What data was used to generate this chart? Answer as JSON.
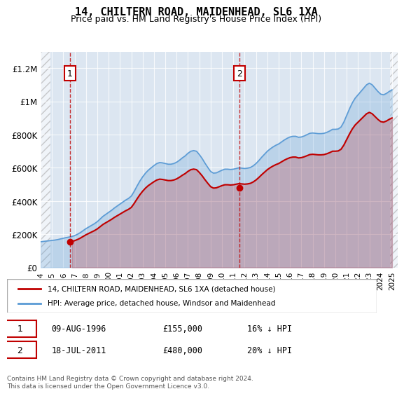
{
  "title": "14, CHILTERN ROAD, MAIDENHEAD, SL6 1XA",
  "subtitle": "Price paid vs. HM Land Registry's House Price Index (HPI)",
  "ylabel": "",
  "ylim": [
    0,
    1300000
  ],
  "yticks": [
    0,
    200000,
    400000,
    600000,
    800000,
    1000000,
    1200000
  ],
  "ytick_labels": [
    "£0",
    "£200K",
    "£400K",
    "£600K",
    "£800K",
    "£1M",
    "£1.2M"
  ],
  "xlim_start": 1994.0,
  "xlim_end": 2025.5,
  "hpi_color": "#5b9bd5",
  "price_color": "#c00000",
  "marker_color": "#c00000",
  "background_color": "#dce6f1",
  "hatch_color": "#c0cfe0",
  "annotation_box_color": "#c00000",
  "legend_label_price": "14, CHILTERN ROAD, MAIDENHEAD, SL6 1XA (detached house)",
  "legend_label_hpi": "HPI: Average price, detached house, Windsor and Maidenhead",
  "annotation1": {
    "label": "1",
    "x": 1996.6,
    "price": 155000,
    "date": "09-AUG-1996",
    "amount": "£155,000",
    "pct": "16% ↓ HPI"
  },
  "annotation2": {
    "label": "2",
    "x": 2011.54,
    "price": 480000,
    "date": "18-JUL-2011",
    "amount": "£480,000",
    "pct": "20% ↓ HPI"
  },
  "footnote": "Contains HM Land Registry data © Crown copyright and database right 2024.\nThis data is licensed under the Open Government Licence v3.0.",
  "hpi_years": [
    1994,
    1994.25,
    1994.5,
    1994.75,
    1995,
    1995.25,
    1995.5,
    1995.75,
    1996,
    1996.25,
    1996.5,
    1996.75,
    1997,
    1997.25,
    1997.5,
    1997.75,
    1998,
    1998.25,
    1998.5,
    1998.75,
    1999,
    1999.25,
    1999.5,
    1999.75,
    2000,
    2000.25,
    2000.5,
    2000.75,
    2001,
    2001.25,
    2001.5,
    2001.75,
    2002,
    2002.25,
    2002.5,
    2002.75,
    2003,
    2003.25,
    2003.5,
    2003.75,
    2004,
    2004.25,
    2004.5,
    2004.75,
    2005,
    2005.25,
    2005.5,
    2005.75,
    2006,
    2006.25,
    2006.5,
    2006.75,
    2007,
    2007.25,
    2007.5,
    2007.75,
    2008,
    2008.25,
    2008.5,
    2008.75,
    2009,
    2009.25,
    2009.5,
    2009.75,
    2010,
    2010.25,
    2010.5,
    2010.75,
    2011,
    2011.25,
    2011.5,
    2011.75,
    2012,
    2012.25,
    2012.5,
    2012.75,
    2013,
    2013.25,
    2013.5,
    2013.75,
    2014,
    2014.25,
    2014.5,
    2014.75,
    2015,
    2015.25,
    2015.5,
    2015.75,
    2016,
    2016.25,
    2016.5,
    2016.75,
    2017,
    2017.25,
    2017.5,
    2017.75,
    2018,
    2018.25,
    2018.5,
    2018.75,
    2019,
    2019.25,
    2019.5,
    2019.75,
    2020,
    2020.25,
    2020.5,
    2020.75,
    2021,
    2021.25,
    2021.5,
    2021.75,
    2022,
    2022.25,
    2022.5,
    2022.75,
    2023,
    2023.25,
    2023.5,
    2023.75,
    2024,
    2024.25,
    2024.5,
    2024.75,
    2025
  ],
  "hpi_values": [
    155000,
    157000,
    159000,
    161000,
    163000,
    165000,
    168000,
    172000,
    176000,
    180000,
    183000,
    186000,
    192000,
    200000,
    210000,
    222000,
    234000,
    244000,
    254000,
    264000,
    276000,
    292000,
    308000,
    320000,
    332000,
    344000,
    358000,
    370000,
    382000,
    394000,
    406000,
    416000,
    430000,
    458000,
    490000,
    520000,
    546000,
    568000,
    586000,
    600000,
    614000,
    626000,
    632000,
    630000,
    626000,
    622000,
    622000,
    626000,
    634000,
    646000,
    660000,
    672000,
    688000,
    700000,
    704000,
    700000,
    680000,
    656000,
    628000,
    602000,
    578000,
    568000,
    570000,
    578000,
    586000,
    592000,
    592000,
    590000,
    592000,
    596000,
    600000,
    598000,
    596000,
    598000,
    602000,
    612000,
    626000,
    644000,
    664000,
    682000,
    700000,
    714000,
    726000,
    736000,
    744000,
    756000,
    768000,
    778000,
    786000,
    790000,
    790000,
    784000,
    786000,
    792000,
    800000,
    808000,
    810000,
    808000,
    806000,
    806000,
    808000,
    814000,
    822000,
    832000,
    832000,
    834000,
    846000,
    876000,
    916000,
    956000,
    992000,
    1020000,
    1040000,
    1060000,
    1080000,
    1100000,
    1110000,
    1100000,
    1080000,
    1060000,
    1044000,
    1040000,
    1048000,
    1060000,
    1070000
  ],
  "price_years": [
    1996.6,
    2011.54
  ],
  "price_values": [
    155000,
    480000
  ],
  "xtick_years": [
    1994,
    1995,
    1996,
    1997,
    1998,
    1999,
    2000,
    2001,
    2002,
    2003,
    2004,
    2005,
    2006,
    2007,
    2008,
    2009,
    2010,
    2011,
    2012,
    2013,
    2014,
    2015,
    2016,
    2017,
    2018,
    2019,
    2020,
    2021,
    2022,
    2023,
    2024,
    2025
  ]
}
